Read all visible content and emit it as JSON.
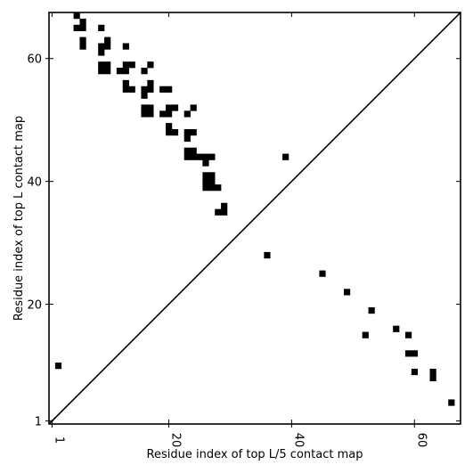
{
  "chart_data": {
    "type": "heatmap",
    "title": "",
    "xlabel": "Residue index of top L/5 contact map",
    "ylabel": "Residue index of top L contact map",
    "xlim": [
      0.5,
      67.5
    ],
    "ylim": [
      0.5,
      67.5
    ],
    "xticks": [
      1,
      20,
      40,
      60
    ],
    "yticks": [
      1,
      20,
      40,
      60
    ],
    "x_tick_labels_rotated": true,
    "diagonal_line": true,
    "cell_color": "#000000",
    "background_color": "#ffffff",
    "lower_triangle_cells": [
      [
        2,
        10
      ],
      [
        36,
        28
      ],
      [
        39,
        44
      ],
      [
        45,
        25
      ],
      [
        49,
        22
      ],
      [
        53,
        19
      ],
      [
        52,
        15
      ],
      [
        57,
        16
      ],
      [
        59,
        15
      ],
      [
        59,
        12
      ],
      [
        60,
        12
      ],
      [
        60,
        9
      ],
      [
        63,
        9
      ],
      [
        63,
        8
      ],
      [
        66,
        4
      ]
    ],
    "upper_triangle_cells": [
      [
        5,
        67
      ],
      [
        6,
        66
      ],
      [
        5,
        65
      ],
      [
        6,
        65
      ],
      [
        6,
        63
      ],
      [
        6,
        62
      ],
      [
        9,
        65
      ],
      [
        9,
        62
      ],
      [
        10,
        63
      ],
      [
        10,
        62
      ],
      [
        9,
        61
      ],
      [
        9,
        59
      ],
      [
        10,
        59
      ],
      [
        9,
        58
      ],
      [
        10,
        58
      ],
      [
        13,
        62
      ],
      [
        14,
        59
      ],
      [
        13,
        59
      ],
      [
        12,
        58
      ],
      [
        13,
        58
      ],
      [
        16,
        58
      ],
      [
        17,
        59
      ],
      [
        13,
        56
      ],
      [
        13,
        55
      ],
      [
        14,
        55
      ],
      [
        16,
        55
      ],
      [
        17,
        56
      ],
      [
        17,
        55
      ],
      [
        16,
        54
      ],
      [
        16,
        52
      ],
      [
        17,
        52
      ],
      [
        16,
        51
      ],
      [
        17,
        51
      ],
      [
        19,
        55
      ],
      [
        20,
        55
      ],
      [
        19,
        51
      ],
      [
        20,
        51
      ],
      [
        20,
        52
      ],
      [
        21,
        52
      ],
      [
        20,
        49
      ],
      [
        20,
        48
      ],
      [
        21,
        48
      ],
      [
        23,
        51
      ],
      [
        24,
        52
      ],
      [
        23,
        48
      ],
      [
        24,
        48
      ],
      [
        23,
        47
      ],
      [
        23,
        45
      ],
      [
        24,
        45
      ],
      [
        23,
        44
      ],
      [
        24,
        44
      ],
      [
        25,
        44
      ],
      [
        26,
        44
      ],
      [
        27,
        44
      ],
      [
        26,
        43
      ],
      [
        26,
        41
      ],
      [
        27,
        41
      ],
      [
        26,
        40
      ],
      [
        27,
        40
      ],
      [
        26,
        39
      ],
      [
        27,
        39
      ],
      [
        28,
        39
      ],
      [
        28,
        35
      ],
      [
        29,
        35
      ],
      [
        29,
        36
      ]
    ]
  }
}
